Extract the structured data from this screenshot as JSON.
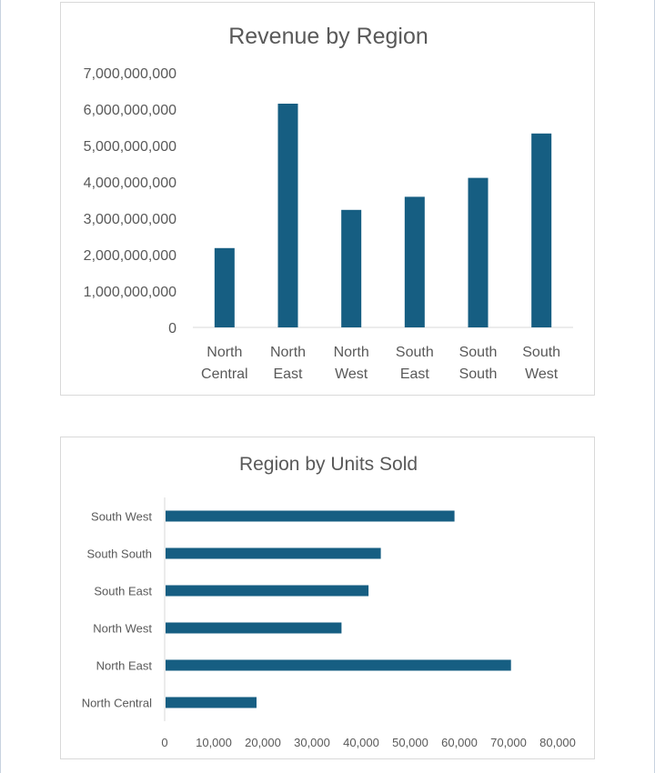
{
  "colors": {
    "bar": "#165e82",
    "text": "#595959",
    "title": "#595959",
    "axis": "#d9d9d9"
  },
  "chart_data": [
    {
      "type": "bar",
      "title": "Revenue by Region",
      "categories": [
        [
          "North",
          "Central"
        ],
        [
          "North",
          "East"
        ],
        [
          "North",
          "West"
        ],
        [
          "South",
          "East"
        ],
        [
          "South",
          "South"
        ],
        [
          "South",
          "West"
        ]
      ],
      "values": [
        2180000000,
        6150000000,
        3230000000,
        3590000000,
        4110000000,
        5330000000
      ],
      "ylim": [
        0,
        7000000000
      ],
      "yticks": [
        0,
        1000000000,
        2000000000,
        3000000000,
        4000000000,
        5000000000,
        6000000000,
        7000000000
      ],
      "ytick_labels": [
        "0",
        "1,000,000,000",
        "2,000,000,000",
        "3,000,000,000",
        "4,000,000,000",
        "5,000,000,000",
        "6,000,000,000",
        "7,000,000,000"
      ],
      "grid": false,
      "legend": "none"
    },
    {
      "type": "bar",
      "orientation": "horizontal",
      "title": "Region by Units Sold",
      "categories": [
        "South West",
        "South South",
        "South East",
        "North West",
        "North East",
        "North Central"
      ],
      "values": [
        59000,
        44000,
        41500,
        36000,
        70500,
        18700
      ],
      "xlim": [
        0,
        80000
      ],
      "xticks": [
        0,
        10000,
        20000,
        30000,
        40000,
        50000,
        60000,
        70000,
        80000
      ],
      "xtick_labels": [
        "0",
        "10,000",
        "20,000",
        "30,000",
        "40,000",
        "50,000",
        "60,000",
        "70,000",
        "80,000"
      ],
      "grid": false,
      "legend": "none"
    }
  ]
}
